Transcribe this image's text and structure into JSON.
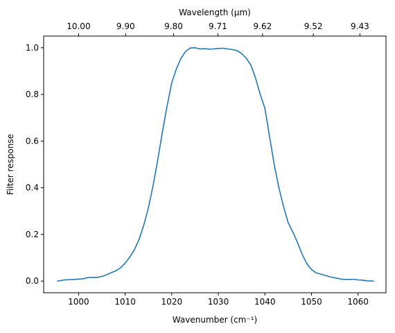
{
  "chart_data": {
    "type": "line",
    "xlabel": "Wavenumber (cm⁻¹)",
    "ylabel": "Filter response",
    "top_xlabel": "Wavelength (μm)",
    "xlim": [
      992.5,
      1066
    ],
    "ylim": [
      -0.05,
      1.05
    ],
    "x_ticks": [
      1000,
      1010,
      1020,
      1030,
      1040,
      1050,
      1060
    ],
    "y_ticks": [
      0.0,
      0.2,
      0.4,
      0.6,
      0.8,
      1.0
    ],
    "y_tick_labels": [
      "0.0",
      "0.2",
      "0.4",
      "0.6",
      "0.8",
      "1.0"
    ],
    "top_ticks": [
      {
        "x": 1000.0,
        "label": "10.00"
      },
      {
        "x": 1010.1,
        "label": "9.90"
      },
      {
        "x": 1020.4,
        "label": "9.80"
      },
      {
        "x": 1029.9,
        "label": "9.71"
      },
      {
        "x": 1039.5,
        "label": "9.62"
      },
      {
        "x": 1050.4,
        "label": "9.52"
      },
      {
        "x": 1060.4,
        "label": "9.43"
      }
    ],
    "grid": false,
    "series": [
      {
        "color": "#1f77b4",
        "x": [
          995.5,
          997,
          999,
          1001,
          1002,
          1003,
          1004,
          1005,
          1006,
          1007,
          1008,
          1009,
          1010,
          1011,
          1012,
          1013,
          1014,
          1015,
          1016,
          1017,
          1018,
          1019,
          1020,
          1021,
          1022,
          1023,
          1024,
          1025,
          1026,
          1027,
          1028,
          1029,
          1030,
          1031,
          1032,
          1033,
          1034,
          1035,
          1036,
          1037,
          1038,
          1039,
          1040,
          1041,
          1042,
          1043,
          1044,
          1045,
          1046,
          1047,
          1048,
          1049,
          1050,
          1051,
          1052,
          1053,
          1054,
          1055,
          1056,
          1057,
          1058,
          1059,
          1060,
          1061,
          1062,
          1063.3
        ],
        "y": [
          0.0,
          0.005,
          0.007,
          0.01,
          0.015,
          0.016,
          0.016,
          0.02,
          0.027,
          0.036,
          0.044,
          0.057,
          0.077,
          0.103,
          0.135,
          0.18,
          0.24,
          0.315,
          0.41,
          0.52,
          0.64,
          0.75,
          0.85,
          0.91,
          0.955,
          0.985,
          0.999,
          1.0,
          0.995,
          0.996,
          0.994,
          0.995,
          0.997,
          0.998,
          0.995,
          0.992,
          0.988,
          0.975,
          0.955,
          0.925,
          0.87,
          0.8,
          0.74,
          0.62,
          0.5,
          0.4,
          0.32,
          0.25,
          0.21,
          0.165,
          0.115,
          0.075,
          0.05,
          0.035,
          0.03,
          0.024,
          0.018,
          0.014,
          0.01,
          0.007,
          0.007,
          0.008,
          0.005,
          0.004,
          0.001,
          0.0
        ]
      }
    ]
  }
}
